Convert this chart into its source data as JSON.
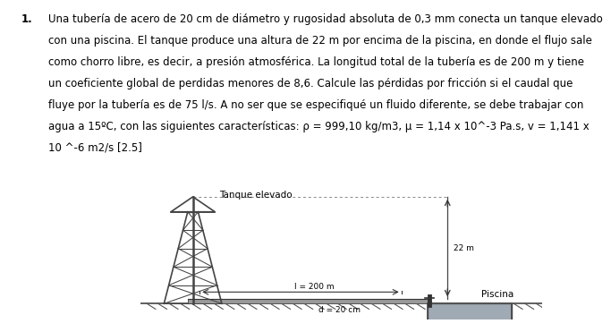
{
  "title_number": "1.",
  "lines": [
    "Una tubería de acero de 20 cm de diámetro y rugosidad absoluta de 0,3 mm conecta un tanque elevado",
    "con una piscina. El tanque produce una altura de 22 m por encima de la piscina, en donde el flujo sale",
    "como chorro libre, es decir, a presión atmosférica. La longitud total de la tubería es de 200 m y tiene",
    "un coeficiente global de perdidas menores de 8,6. Calcule las pérdidas por fricción si el caudal que",
    "fluye por la tubería es de 75 l/s. A no ser que se especifiqué un fluido diferente, se debe trabajar con",
    "agua a 15ºC, con las siguientes características: ρ = 999,10 kg/m3, μ = 1,14 x 10^-3 Pa.s, v = 1,141 x",
    "10 ^-6 m2/s [2.5]"
  ],
  "tank_label": "Tanque elevado",
  "height_label": "22 m",
  "length_label": "l = 200 m",
  "diameter_label": "d = 20 cm",
  "pool_label": "Piscina",
  "diagram_bg": "#dcdcdc",
  "ground_color": "#555555",
  "tower_color": "#444444",
  "pipe_color_fill": "#aaaaaa",
  "pool_water_top": "#b8c4d0",
  "pool_water_bot": "#8898a8",
  "text_color": "#000000",
  "dotted_color": "#888888",
  "fontsize_text": 8.5,
  "fontsize_label": 7.5,
  "fontsize_small": 6.5
}
